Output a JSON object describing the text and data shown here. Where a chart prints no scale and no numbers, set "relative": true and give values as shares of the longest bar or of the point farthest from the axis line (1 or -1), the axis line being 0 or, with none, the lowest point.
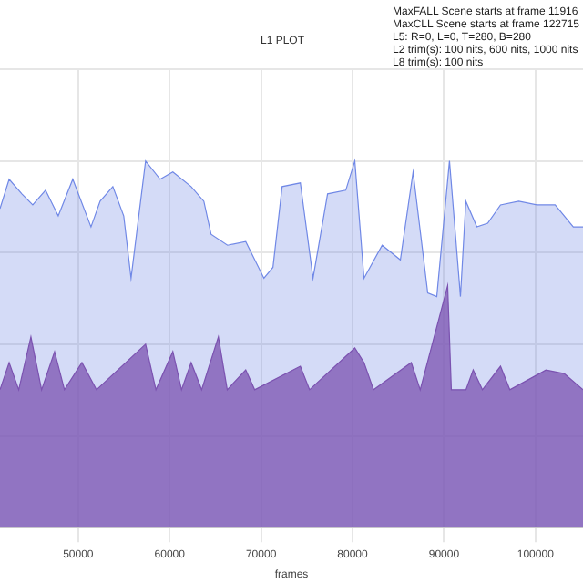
{
  "chart_data": {
    "type": "area",
    "title": "L1 PLOT",
    "xlabel": "frames",
    "relative": true,
    "grid": true,
    "legend": false,
    "xlim": [
      41450,
      105200
    ],
    "xticks": [
      50000,
      60000,
      70000,
      80000,
      90000,
      100000
    ],
    "annotations": [
      "MaxFALL Scene starts at frame 11916",
      "MaxCLL Scene starts at frame 122715",
      "L5: R=0, L=0, T=280, B=280",
      "L2 trim(s): 100 nits, 600 nits, 1000 nits",
      "L8 trim(s): 100 nits"
    ],
    "series": [
      {
        "color": "#7b52b0",
        "x": [
          41450,
          42450,
          43500,
          44830,
          46000,
          47420,
          48500,
          50410,
          52000,
          57370,
          58500,
          60350,
          61300,
          62350,
          63500,
          65330,
          66300,
          68320,
          69300,
          74290,
          75300,
          80250,
          81250,
          82300,
          86420,
          87400,
          90400,
          90800,
          92400,
          93190,
          94200,
          96180,
          97200,
          101150,
          103140,
          105200
        ],
        "values": [
          0.376,
          0.45,
          0.376,
          0.52,
          0.376,
          0.48,
          0.376,
          0.45,
          0.376,
          0.5,
          0.376,
          0.48,
          0.376,
          0.45,
          0.376,
          0.52,
          0.376,
          0.43,
          0.376,
          0.44,
          0.376,
          0.49,
          0.45,
          0.376,
          0.45,
          0.376,
          0.66,
          0.376,
          0.376,
          0.43,
          0.376,
          0.44,
          0.376,
          0.43,
          0.42,
          0.376
        ]
      },
      {
        "color": "#7088e6",
        "x": [
          41450,
          42450,
          43840,
          45030,
          46430,
          47820,
          49410,
          51400,
          52400,
          53790,
          54980,
          55780,
          57370,
          58960,
          60350,
          62350,
          63740,
          64530,
          66330,
          68320,
          70310,
          71300,
          72300,
          74290,
          75680,
          77270,
          79260,
          80250,
          81250,
          83240,
          85230,
          86620,
          88220,
          89210,
          90600,
          91800,
          92390,
          93590,
          94780,
          96180,
          98170,
          100150,
          102150,
          104140,
          105200
        ],
        "values": [
          0.87,
          0.95,
          0.91,
          0.88,
          0.92,
          0.85,
          0.95,
          0.82,
          0.89,
          0.93,
          0.85,
          0.68,
          1,
          0.95,
          0.97,
          0.93,
          0.89,
          0.8,
          0.77,
          0.78,
          0.68,
          0.71,
          0.93,
          0.94,
          0.68,
          0.91,
          0.92,
          1,
          0.68,
          0.77,
          0.73,
          0.97,
          0.64,
          0.63,
          1,
          0.63,
          0.89,
          0.82,
          0.83,
          0.88,
          0.89,
          0.88,
          0.88,
          0.82,
          0.82
        ]
      }
    ]
  }
}
